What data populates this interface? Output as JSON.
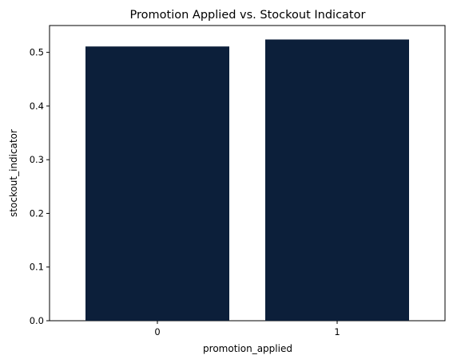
{
  "chart_data": {
    "type": "bar",
    "title": "Promotion Applied vs. Stockout Indicator",
    "xlabel": "promotion_applied",
    "ylabel": "stockout_indicator",
    "categories": [
      "0",
      "1"
    ],
    "values": [
      0.511,
      0.524
    ],
    "ylim": [
      0,
      0.55
    ],
    "yticks": [
      0.0,
      0.1,
      0.2,
      0.3,
      0.4,
      0.5
    ],
    "ytick_labels": [
      "0.0",
      "0.1",
      "0.2",
      "0.3",
      "0.4",
      "0.5"
    ],
    "grid": false,
    "bar_color": "#0c1f3a"
  }
}
